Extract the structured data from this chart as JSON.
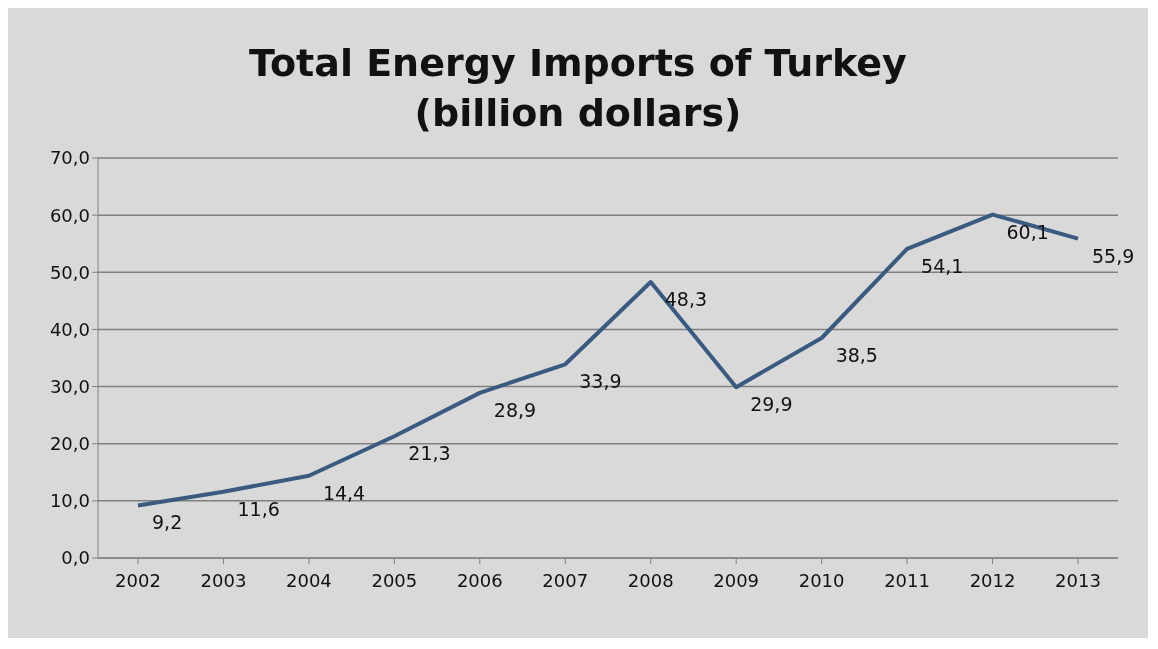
{
  "chart_data": {
    "type": "line",
    "title": "Total Energy Imports of Turkey",
    "subtitle": "(billion dollars)",
    "categories": [
      "2002",
      "2003",
      "2004",
      "2005",
      "2006",
      "2007",
      "2008",
      "2009",
      "2010",
      "2011",
      "2012",
      "2013"
    ],
    "series": [
      {
        "color": "#3a5a80",
        "values": [
          9.2,
          11.6,
          14.4,
          21.3,
          28.9,
          33.9,
          48.3,
          29.9,
          38.5,
          54.1,
          60.1,
          55.9
        ],
        "value_labels": [
          "9,2",
          "11,6",
          "14,4",
          "21,3",
          "28,9",
          "33,9",
          "48,3",
          "29,9",
          "38,5",
          "54,1",
          "60,1",
          "55,9"
        ]
      }
    ],
    "ylim": [
      0,
      70
    ],
    "yticks": [
      {
        "value": 0,
        "label": "0,0"
      },
      {
        "value": 10,
        "label": "10,0"
      },
      {
        "value": 20,
        "label": "20,0"
      },
      {
        "value": 30,
        "label": "30,0"
      },
      {
        "value": 40,
        "label": "40,0"
      },
      {
        "value": 50,
        "label": "50,0"
      },
      {
        "value": 60,
        "label": "60,0"
      },
      {
        "value": 70,
        "label": "70,0"
      }
    ],
    "grid": "y",
    "legend": false,
    "marker": "none",
    "line_style": "solid"
  }
}
